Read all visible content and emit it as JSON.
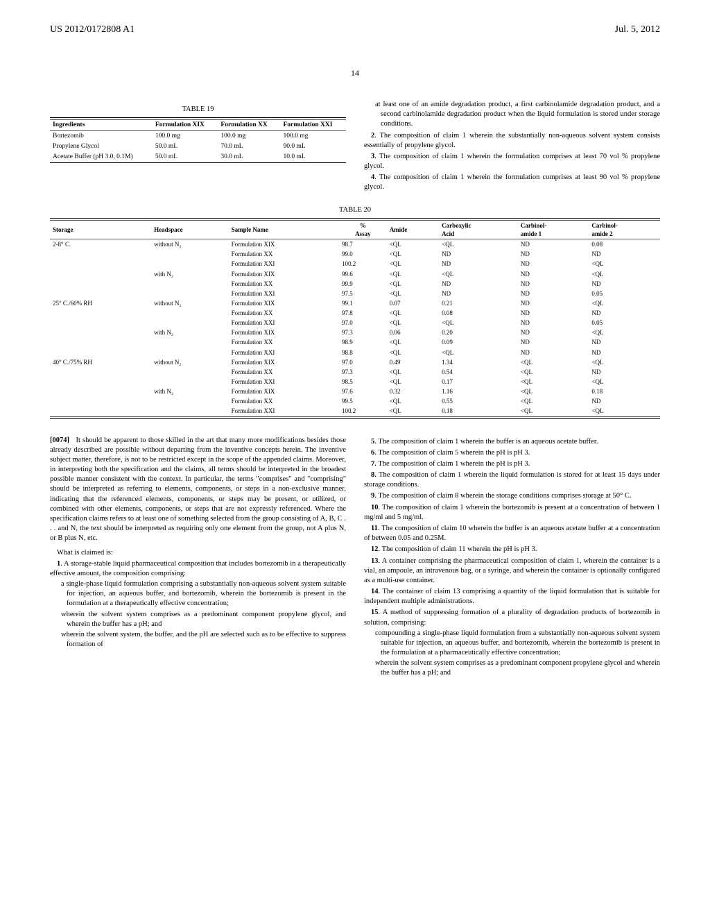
{
  "header": {
    "doc_no": "US 2012/0172808 A1",
    "date": "Jul. 5, 2012"
  },
  "page_num": "14",
  "table19": {
    "caption": "TABLE 19",
    "headers": [
      "Ingredients",
      "Formulation XIX",
      "Formulation XX",
      "Formulation XXI"
    ],
    "rows": [
      [
        "Bortezomib",
        "100.0 mg",
        "100.0 mg",
        "100.0 mg"
      ],
      [
        "Propylene Glycol",
        "50.0 mL",
        "70.0 mL",
        "90.0 mL"
      ],
      [
        "Acetate Buffer (pH 3.0, 0.1M)",
        "50.0 mL",
        "30.0 mL",
        "10.0 mL"
      ]
    ]
  },
  "right_top_continuation": "at least one of an amide degradation product, a first carbinolamide degradation product, and a second carbinolamide degradation product when the liquid formulation is stored under storage conditions.",
  "claims_right_top": [
    {
      "n": "2",
      "t": "The composition of claim 1 wherein the substantially non-aqueous solvent system consists essentially of propylene glycol."
    },
    {
      "n": "3",
      "t": "The composition of claim 1 wherein the formulation comprises at least 70 vol % propylene glycol."
    },
    {
      "n": "4",
      "t": "The composition of claim 1 wherein the formulation comprises at least 90 vol % propylene glycol."
    }
  ],
  "table20": {
    "caption": "TABLE 20",
    "headers": [
      "Storage",
      "Headspace",
      "Sample Name",
      "% Assay",
      "Amide",
      "Carboxylic Acid",
      "Carbinol-amide 1",
      "Carbinol-amide 2"
    ],
    "rows": [
      [
        "2-8° C.",
        "without N₂",
        "Formulation XIX",
        "98.7",
        "<QL",
        "<QL",
        "ND",
        "0.08"
      ],
      [
        "",
        "",
        "Formulation XX",
        "99.0",
        "<QL",
        "ND",
        "ND",
        "ND"
      ],
      [
        "",
        "",
        "Formulation XXI",
        "100.2",
        "<QL",
        "ND",
        "ND",
        "<QL"
      ],
      [
        "",
        "with N₂",
        "Formulation XIX",
        "99.6",
        "<QL",
        "<QL",
        "ND",
        "<QL"
      ],
      [
        "",
        "",
        "Formulation XX",
        "99.9",
        "<QL",
        "ND",
        "ND",
        "ND"
      ],
      [
        "",
        "",
        "Formulation XXI",
        "97.5",
        "<QL",
        "ND",
        "ND",
        "0.05"
      ],
      [
        "25° C./60% RH",
        "without N₂",
        "Formulation XIX",
        "99.1",
        "0.07",
        "0.21",
        "ND",
        "<QL"
      ],
      [
        "",
        "",
        "Formulation XX",
        "97.8",
        "<QL",
        "0.08",
        "ND",
        "ND"
      ],
      [
        "",
        "",
        "Formulation XXI",
        "97.0",
        "<QL",
        "<QL",
        "ND",
        "0.05"
      ],
      [
        "",
        "with N₂",
        "Formulation XIX",
        "97.3",
        "0.06",
        "0.20",
        "ND",
        "<QL"
      ],
      [
        "",
        "",
        "Formulation XX",
        "98.9",
        "<QL",
        "0.09",
        "ND",
        "ND"
      ],
      [
        "",
        "",
        "Formulation XXI",
        "98.8",
        "<QL",
        "<QL",
        "ND",
        "ND"
      ],
      [
        "40° C./75% RH",
        "without N₂",
        "Formulation XIX",
        "97.0",
        "0.49",
        "1.34",
        "<QL",
        "<QL"
      ],
      [
        "",
        "",
        "Formulation XX",
        "97.3",
        "<QL",
        "0.54",
        "<QL",
        "ND"
      ],
      [
        "",
        "",
        "Formulation XXI",
        "98.5",
        "<QL",
        "0.17",
        "<QL",
        "<QL"
      ],
      [
        "",
        "with N₂",
        "Formulation XIX",
        "97.6",
        "0.32",
        "1.16",
        "<QL",
        "0.18"
      ],
      [
        "",
        "",
        "Formulation XX",
        "99.5",
        "<QL",
        "0.55",
        "<QL",
        "ND"
      ],
      [
        "",
        "",
        "Formulation XXI",
        "100.2",
        "<QL",
        "0.18",
        "<QL",
        "<QL"
      ]
    ]
  },
  "para74": {
    "num": "[0074]",
    "text": "It should be apparent to those skilled in the art that many more modifications besides those already described are possible without departing from the inventive concepts herein. The inventive subject matter, therefore, is not to be restricted except in the scope of the appended claims. Moreover, in interpreting both the specification and the claims, all terms should be interpreted in the broadest possible manner consistent with the context. In particular, the terms \"comprises\" and \"comprising\" should be interpreted as referring to elements, components, or steps in a non-exclusive manner, indicating that the referenced elements, components, or steps may be present, or utilized, or combined with other elements, components, or steps that are not expressly referenced. Where the specification claims refers to at least one of something selected from the group consisting of A, B, C . . . and N, the text should be interpreted as requiring only one element from the group, not A plus N, or B plus N, etc."
  },
  "claims_intro": "What is claimed is:",
  "claim1": {
    "n": "1",
    "lead": "A storage-stable liquid pharmaceutical composition that includes bortezomib in a therapeutically effective amount, the composition comprising:",
    "subs": [
      "a single-phase liquid formulation comprising a substantially non-aqueous solvent system suitable for injection, an aqueous buffer, and bortezomib, wherein the bortezomib is present in the formulation at a therapeutically effective concentration;",
      "wherein the solvent system comprises as a predominant component propylene glycol, and wherein the buffer has a pH; and",
      "wherein the solvent system, the buffer, and the pH are selected such as to be effective to suppress formation of"
    ]
  },
  "claims_right": [
    {
      "n": "5",
      "t": "The composition of claim 1 wherein the buffer is an aqueous acetate buffer."
    },
    {
      "n": "6",
      "t": "The composition of claim 5 wherein the pH is pH 3."
    },
    {
      "n": "7",
      "t": "The composition of claim 1 wherein the pH is pH 3."
    },
    {
      "n": "8",
      "t": "The composition of claim 1 wherein the liquid formulation is stored for at least 15 days under storage conditions."
    },
    {
      "n": "9",
      "t": "The composition of claim 8 wherein the storage conditions comprises storage at 50° C."
    },
    {
      "n": "10",
      "t": "The composition of claim 1 wherein the bortezomib is present at a concentration of between 1 mg/ml and 5 mg/ml."
    },
    {
      "n": "11",
      "t": "The composition of claim 10 wherein the buffer is an aqueous acetate buffer at a concentration of between 0.05 and 0.25M."
    },
    {
      "n": "12",
      "t": "The composition of claim 11 wherein the pH is pH 3."
    },
    {
      "n": "13",
      "t": "A container comprising the pharmaceutical composition of claim 1, wherein the container is a vial, an ampoule, an intravenous bag, or a syringe, and wherein the container is optionally configured as a multi-use container."
    },
    {
      "n": "14",
      "t": "The container of claim 13 comprising a quantity of the liquid formulation that is suitable for independent multiple administrations."
    }
  ],
  "claim15": {
    "n": "15",
    "lead": "A method of suppressing formation of a plurality of degradation products of bortezomib in solution, comprising:",
    "subs": [
      "compounding a single-phase liquid formulation from a substantially non-aqueous solvent system suitable for injection, an aqueous buffer, and bortezomib, wherein the bortezomib is present in the formulation at a pharmaceutically effective concentration;",
      "wherein the solvent system comprises as a predominant component propylene glycol and wherein the buffer has a pH; and"
    ]
  }
}
